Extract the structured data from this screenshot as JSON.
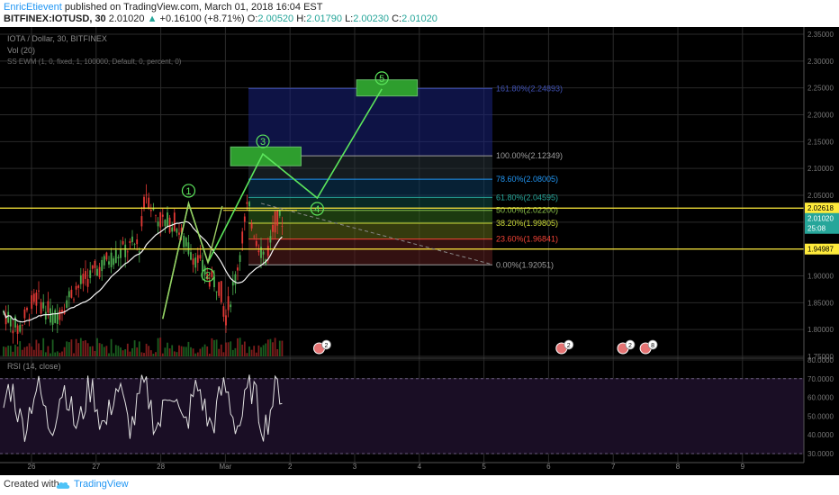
{
  "header": {
    "author": "EnricEtievent",
    "published": "published on TradingView.com, March 01, 2018 16:04 EST",
    "symbol": "BITFINEX:IOTUSD, 30",
    "last": "2.01020",
    "change": "+0.16100 (+8.71%)",
    "o_label": "O:",
    "o_value": "2.00520",
    "h_label": "H:",
    "h_value": "2.01790",
    "l_label": "L:",
    "l_value": "2.00230",
    "c_label": "C:",
    "c_value": "2.01020"
  },
  "legend": {
    "title": "IOTA / Dollar, 30, BITFINEX",
    "vol": "Vol (20)",
    "ewm": "SS EWM (1, 0, fixed, 1, 100000, Default, 0, percent, 0)",
    "rsi": "RSI (14, close)"
  },
  "price_tags": [
    {
      "value": "2.02618",
      "kind": "line"
    },
    {
      "value": "2.01020",
      "kind": "last"
    },
    {
      "value": "25:08",
      "kind": "timer"
    },
    {
      "value": "1.94987",
      "kind": "line"
    }
  ],
  "fib_levels": [
    {
      "label": "161.80%(2.24893)",
      "price": 2.24893,
      "color": "#3f51b5"
    },
    {
      "label": "100.00%(2.12349)",
      "price": 2.12349,
      "color": "#9e9e9e"
    },
    {
      "label": "78.60%(2.08005)",
      "price": 2.08005,
      "color": "#2196f3"
    },
    {
      "label": "61.80%(2.04595)",
      "price": 2.04595,
      "color": "#26a69a"
    },
    {
      "label": "50.00%(2.02200)",
      "price": 2.022,
      "color": "#8bc34a"
    },
    {
      "label": "38.20%(1.99805)",
      "price": 1.99805,
      "color": "#cddc39"
    },
    {
      "label": "23.60%(1.96841)",
      "price": 1.96841,
      "color": "#f44336"
    },
    {
      "label": "0.00%(1.92051)",
      "price": 1.92051,
      "color": "#9e9e9e"
    }
  ],
  "wave_labels": [
    "1",
    "2",
    "3",
    "4",
    "5"
  ],
  "event_badges": [
    "2",
    "2",
    "2",
    "8"
  ],
  "footer": {
    "created_with": "Created with",
    "brand": "TradingView"
  },
  "chart_data": [
    {
      "type": "candlestick",
      "title": "IOTA / Dollar, 30, BITFINEX",
      "x_tick_labels": [
        "26",
        "27",
        "28",
        "Mar",
        "2",
        "3",
        "4",
        "5",
        "6",
        "7",
        "8",
        "9"
      ],
      "y_tick_labels": [
        "2.35000",
        "2.30000",
        "2.25000",
        "2.20000",
        "2.15000",
        "2.10000",
        "2.05000",
        "2.00000",
        "1.95000",
        "1.90000",
        "1.85000",
        "1.80000",
        "1.75000"
      ],
      "ylim": [
        1.73,
        2.36
      ],
      "horizontal_lines": [
        2.02618,
        1.94987
      ],
      "elliott_wave_path": [
        {
          "day": 3.03,
          "price": 1.82
        },
        {
          "day": 3.43,
          "price": 2.035
        },
        {
          "day": 3.73,
          "price": 1.925
        },
        {
          "day": 4.58,
          "price": 2.127
        },
        {
          "day": 5.42,
          "price": 2.045
        },
        {
          "day": 6.42,
          "price": 2.248
        }
      ],
      "target_boxes": [
        {
          "day_from": 4.08,
          "day_to": 5.17,
          "price_from": 2.105,
          "price_to": 2.14
        },
        {
          "day_from": 6.03,
          "day_to": 6.97,
          "price_from": 2.235,
          "price_to": 2.265
        }
      ]
    },
    {
      "type": "line",
      "title": "RSI (14, close)",
      "y_tick_labels": [
        "80.0000",
        "70.0000",
        "60.0000",
        "50.0000",
        "40.0000",
        "30.0000"
      ],
      "ylim": [
        28,
        82
      ],
      "bands": [
        30,
        70
      ]
    }
  ]
}
